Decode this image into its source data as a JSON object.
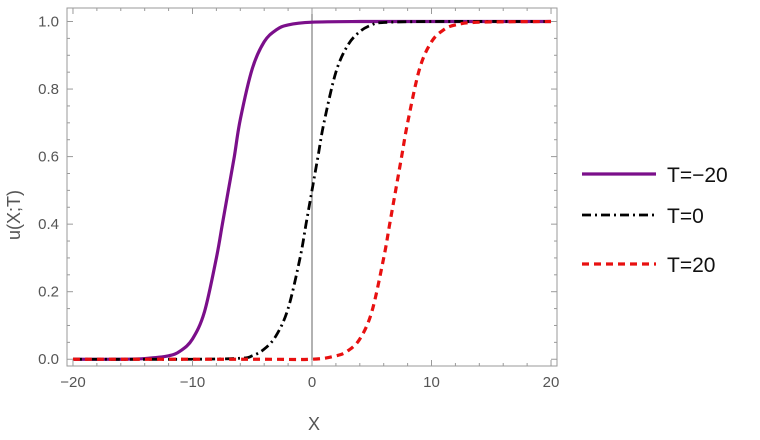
{
  "chart_data": {
    "type": "line",
    "xlabel": "X",
    "ylabel": "u(X;T)",
    "xlim": [
      -20.5,
      20.5
    ],
    "ylim": [
      -0.02,
      1.04
    ],
    "x_ticks": [
      -20,
      -10,
      0,
      10,
      20
    ],
    "x_tick_labels": [
      "−20",
      "−10",
      "0",
      "10",
      "20"
    ],
    "y_ticks": [
      0.0,
      0.2,
      0.4,
      0.6,
      0.8,
      1.0
    ],
    "y_tick_labels": [
      "0.0",
      "0.2",
      "0.4",
      "0.6",
      "0.8",
      "1.0"
    ],
    "grid": false,
    "legend_position": "right",
    "series": [
      {
        "name": "T=−20",
        "color": "#7b0f8a",
        "style": "solid",
        "x": [
          -20,
          -16,
          -14,
          -12,
          -11,
          -10,
          -9,
          -8,
          -7.5,
          -7,
          -6.5,
          -6,
          -5,
          -4,
          -3,
          -2,
          0,
          4,
          10,
          20
        ],
        "y": [
          0.0,
          0.0,
          0.002,
          0.01,
          0.025,
          0.06,
          0.14,
          0.3,
          0.4,
          0.5,
          0.6,
          0.71,
          0.86,
          0.94,
          0.975,
          0.99,
          0.998,
          1.0,
          1.0,
          1.0
        ]
      },
      {
        "name": "T=0",
        "color": "#000000",
        "style": "dashdot",
        "x": [
          -20,
          -10,
          -6,
          -5,
          -4,
          -3,
          -2,
          -1,
          -0.5,
          0,
          0.5,
          1,
          2,
          3,
          4,
          5,
          6,
          10,
          20
        ],
        "y": [
          0.0,
          0.0,
          0.003,
          0.01,
          0.03,
          0.07,
          0.15,
          0.3,
          0.4,
          0.5,
          0.6,
          0.7,
          0.85,
          0.93,
          0.97,
          0.99,
          0.997,
          1.0,
          1.0
        ]
      },
      {
        "name": "T=20",
        "color": "#e81010",
        "style": "dashed",
        "x": [
          -20,
          -5,
          0,
          2,
          3,
          4,
          5,
          6,
          6.5,
          7,
          7.5,
          8,
          9,
          10,
          11,
          12,
          14,
          20
        ],
        "y": [
          0.0,
          0.0,
          0.0,
          0.01,
          0.025,
          0.06,
          0.14,
          0.3,
          0.4,
          0.5,
          0.6,
          0.7,
          0.86,
          0.94,
          0.975,
          0.99,
          0.998,
          1.0
        ]
      }
    ]
  }
}
